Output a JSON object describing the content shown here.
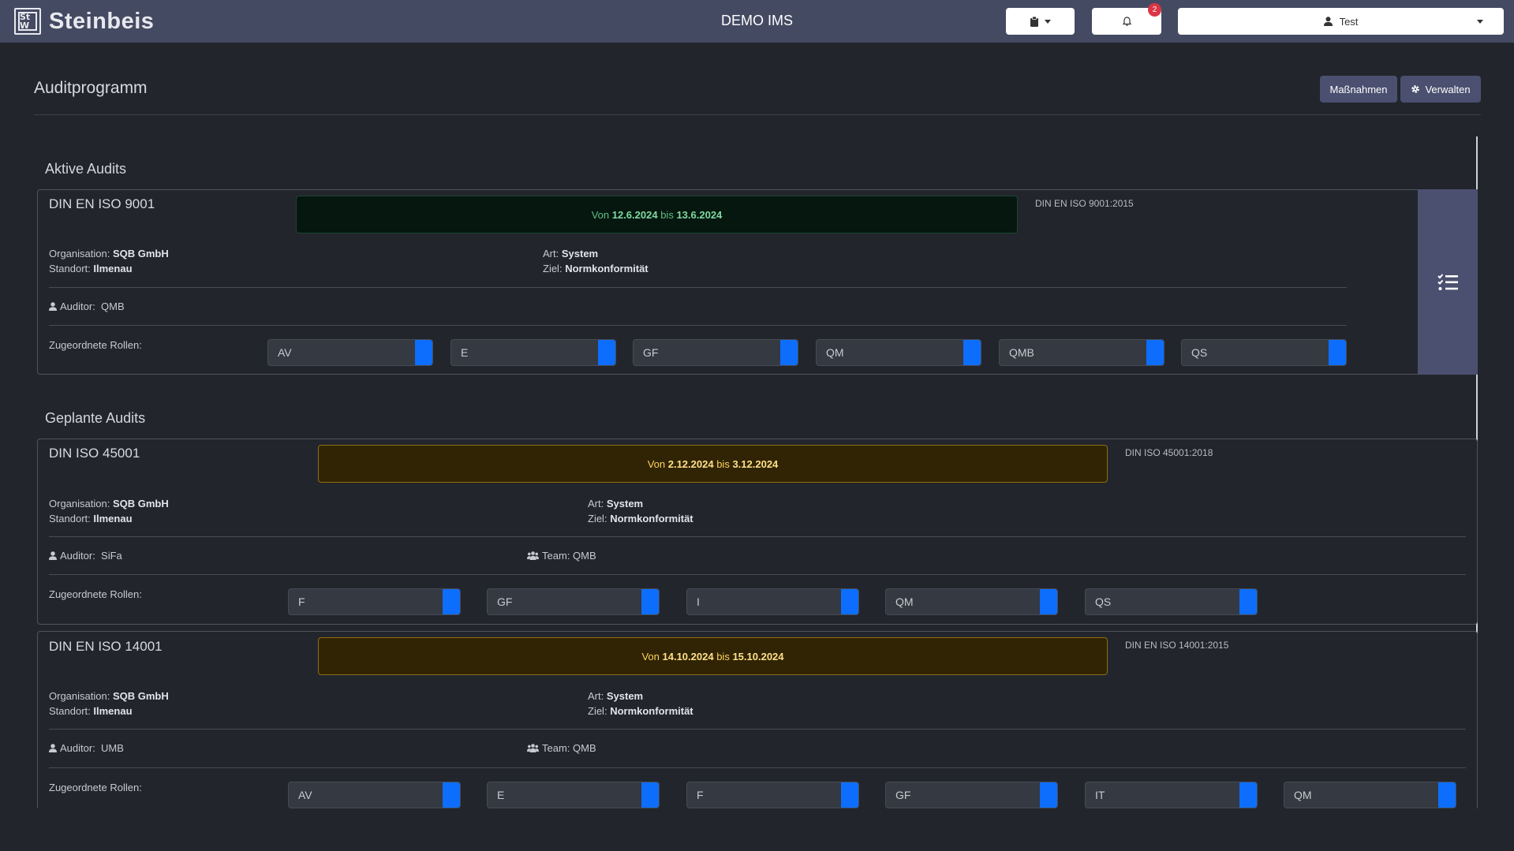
{
  "header": {
    "logo_mark": "St W",
    "logo_text": "Steinbeis",
    "app_title": "DEMO IMS",
    "notification_count": "2",
    "user_name": "Test"
  },
  "page": {
    "title": "Auditprogramm",
    "buttons": {
      "massnahmen": "Maßnahmen",
      "verwalten": "Verwalten"
    }
  },
  "sections": {
    "active": "Aktive Audits",
    "planned": "Geplante Audits"
  },
  "labels": {
    "von": "Von",
    "bis": "bis",
    "organisation": "Organisation:",
    "standort": "Standort:",
    "art": "Art:",
    "ziel": "Ziel:",
    "auditor": "Auditor:",
    "team": "Team:",
    "rollen": "Zugeordnete Rollen:"
  },
  "audits": [
    {
      "title": "DIN EN ISO 9001",
      "from": "12.6.2024",
      "to": "13.6.2024",
      "status_color": "#5fbf85",
      "norm": "DIN EN ISO 9001:2015",
      "organisation": "SQB GmbH",
      "standort": "Ilmenau",
      "art": "System",
      "ziel": "Normkonformität",
      "auditor": "QMB",
      "roles": [
        "AV",
        "E",
        "GF",
        "QM",
        "QMB",
        "QS"
      ]
    },
    {
      "title": "DIN ISO 45001",
      "from": "2.12.2024",
      "to": "3.12.2024",
      "status_color": "#ffd160",
      "norm": "DIN ISO 45001:2018",
      "organisation": "SQB GmbH",
      "standort": "Ilmenau",
      "art": "System",
      "ziel": "Normkonformität",
      "auditor": "SiFa",
      "team": "QMB",
      "roles": [
        "F",
        "GF",
        "I",
        "QM",
        "QS"
      ]
    },
    {
      "title": "DIN EN ISO 14001",
      "from": "14.10.2024",
      "to": "15.10.2024",
      "status_color": "#ffd160",
      "norm": "DIN EN ISO 14001:2015",
      "organisation": "SQB GmbH",
      "standort": "Ilmenau",
      "art": "System",
      "ziel": "Normkonformität",
      "auditor": "UMB",
      "team": "QMB",
      "roles": [
        "AV",
        "E",
        "F",
        "GF",
        "IT",
        "QM"
      ]
    }
  ]
}
